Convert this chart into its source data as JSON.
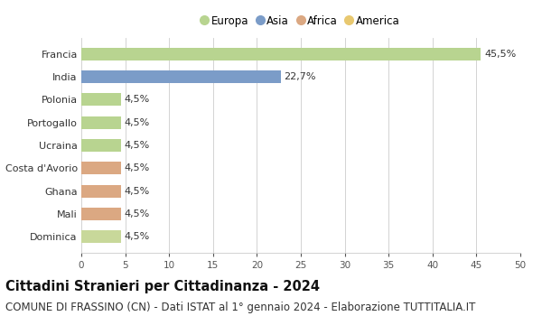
{
  "categories": [
    "Dominica",
    "Mali",
    "Ghana",
    "Costa d'Avorio",
    "Ucraina",
    "Portogallo",
    "Polonia",
    "India",
    "Francia"
  ],
  "values": [
    4.5,
    4.5,
    4.5,
    4.5,
    4.5,
    4.5,
    4.5,
    22.7,
    45.5
  ],
  "colors": [
    "#c8d89a",
    "#dba882",
    "#dba882",
    "#dba882",
    "#b8d490",
    "#b8d490",
    "#b8d490",
    "#7b9cc8",
    "#b8d490"
  ],
  "labels": [
    "4,5%",
    "4,5%",
    "4,5%",
    "4,5%",
    "4,5%",
    "4,5%",
    "4,5%",
    "22,7%",
    "45,5%"
  ],
  "legend_labels": [
    "Europa",
    "Asia",
    "Africa",
    "America"
  ],
  "legend_colors": [
    "#b8d490",
    "#7b9cc8",
    "#dba882",
    "#e8c870"
  ],
  "xlim": [
    0,
    50
  ],
  "xticks": [
    0,
    5,
    10,
    15,
    20,
    25,
    30,
    35,
    40,
    45,
    50
  ],
  "title": "Cittadini Stranieri per Cittadinanza - 2024",
  "subtitle": "COMUNE DI FRASSINO (CN) - Dati ISTAT al 1° gennaio 2024 - Elaborazione TUTTITALIA.IT",
  "background_color": "#ffffff",
  "grid_color": "#cccccc",
  "bar_height": 0.55,
  "label_fontsize": 8,
  "title_fontsize": 10.5,
  "subtitle_fontsize": 8.5
}
